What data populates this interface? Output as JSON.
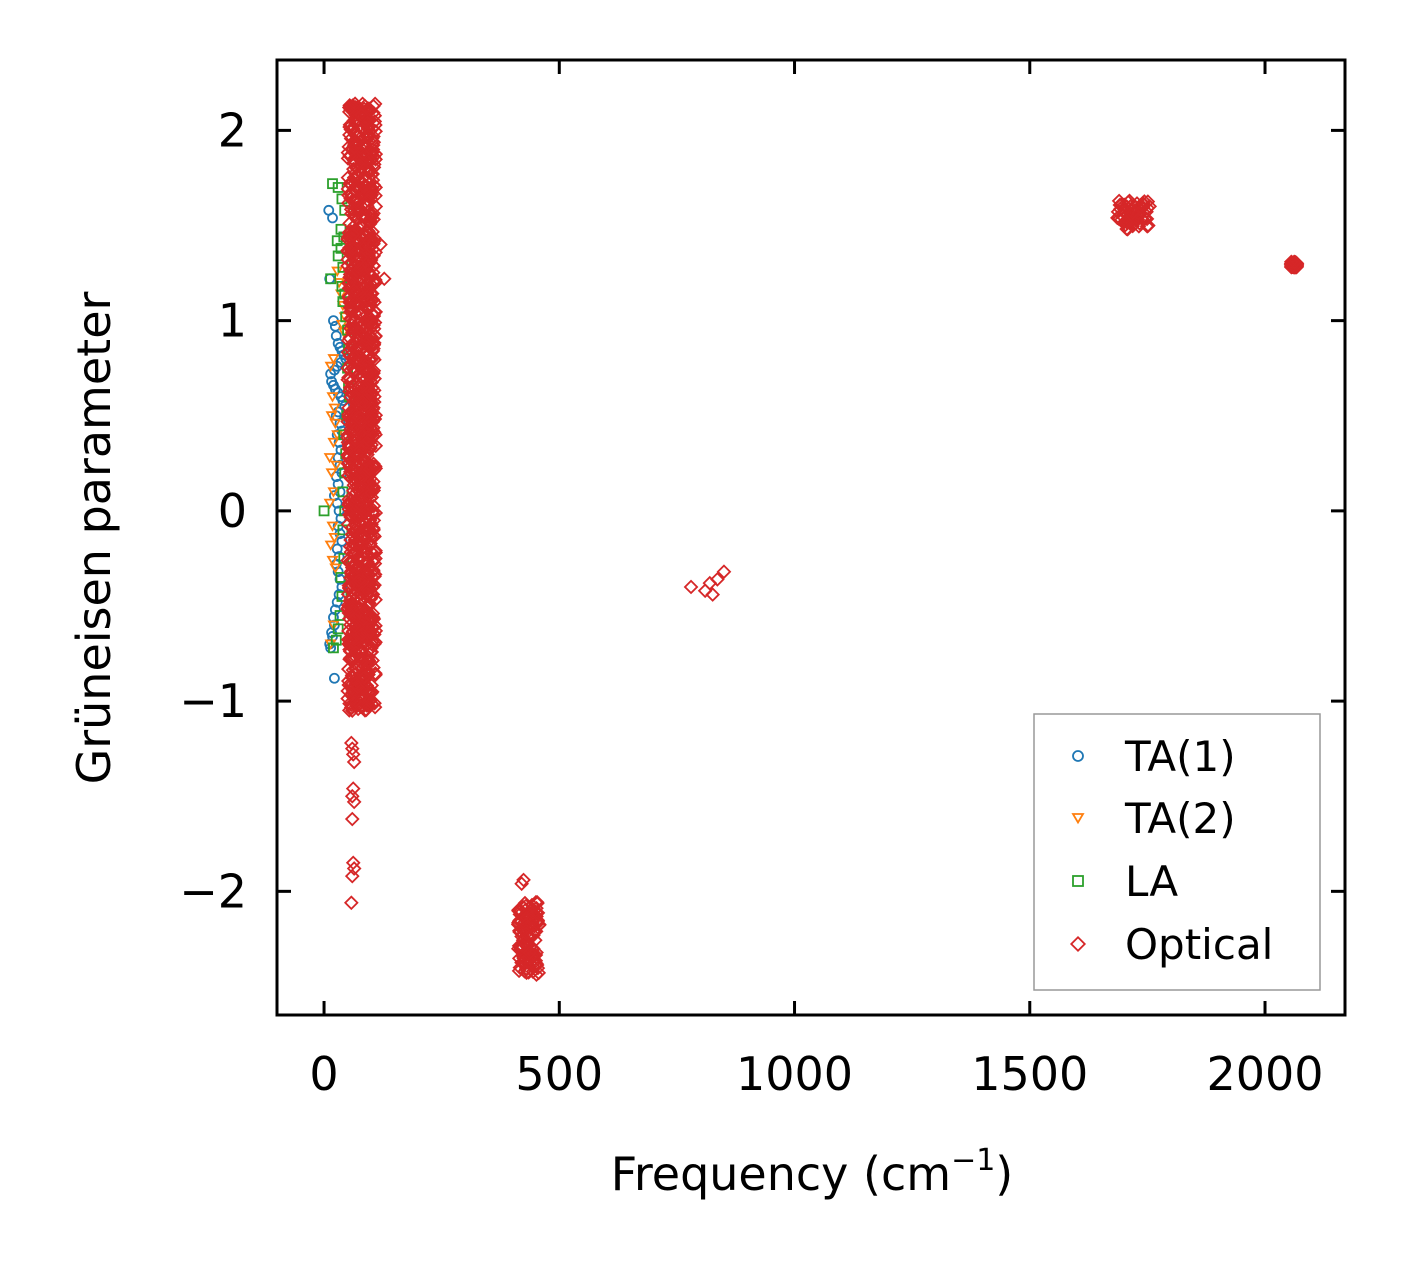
{
  "chart_data": {
    "type": "scatter",
    "xlabel_main": "Frequency (cm",
    "xlabel_sup": "−1",
    "xlabel_close": ")",
    "ylabel": "Grüneisen parameter",
    "xlim": [
      -100,
      2170
    ],
    "ylim": [
      -2.65,
      2.37
    ],
    "xticks": [
      0,
      500,
      1000,
      1500,
      2000
    ],
    "xtick_labels": [
      "0",
      "500",
      "1000",
      "1500",
      "2000"
    ],
    "yticks": [
      -2,
      -1,
      0,
      1,
      2
    ],
    "ytick_labels": [
      "−2",
      "−1",
      "0",
      "1",
      "2"
    ],
    "legend_position": "lower-right",
    "series": [
      {
        "name": "TA(1)",
        "marker": "circle",
        "color": "#1f77b4",
        "points": [
          [
            10,
            1.58
          ],
          [
            18,
            1.54
          ],
          [
            12,
            1.22
          ],
          [
            20,
            1.0
          ],
          [
            24,
            0.97
          ],
          [
            26,
            0.92
          ],
          [
            30,
            0.88
          ],
          [
            34,
            0.86
          ],
          [
            38,
            0.84
          ],
          [
            42,
            0.82
          ],
          [
            46,
            0.8
          ],
          [
            36,
            0.78
          ],
          [
            28,
            0.76
          ],
          [
            22,
            0.74
          ],
          [
            14,
            0.72
          ],
          [
            16,
            0.68
          ],
          [
            20,
            0.66
          ],
          [
            24,
            0.64
          ],
          [
            30,
            0.62
          ],
          [
            36,
            0.6
          ],
          [
            40,
            0.58
          ],
          [
            44,
            0.55
          ],
          [
            30,
            0.52
          ],
          [
            26,
            0.5
          ],
          [
            34,
            0.46
          ],
          [
            38,
            0.42
          ],
          [
            28,
            0.4
          ],
          [
            32,
            0.36
          ],
          [
            36,
            0.32
          ],
          [
            30,
            0.28
          ],
          [
            34,
            0.24
          ],
          [
            38,
            0.2
          ],
          [
            26,
            0.18
          ],
          [
            30,
            0.14
          ],
          [
            34,
            0.1
          ],
          [
            22,
            0.08
          ],
          [
            28,
            0.04
          ],
          [
            32,
            0.0
          ],
          [
            36,
            -0.04
          ],
          [
            30,
            -0.08
          ],
          [
            34,
            -0.12
          ],
          [
            38,
            -0.16
          ],
          [
            28,
            -0.2
          ],
          [
            32,
            -0.24
          ],
          [
            26,
            -0.28
          ],
          [
            30,
            -0.32
          ],
          [
            34,
            -0.36
          ],
          [
            38,
            -0.4
          ],
          [
            32,
            -0.44
          ],
          [
            28,
            -0.48
          ],
          [
            24,
            -0.52
          ],
          [
            20,
            -0.56
          ],
          [
            22,
            -0.6
          ],
          [
            16,
            -0.64
          ],
          [
            18,
            -0.66
          ],
          [
            12,
            -0.7
          ],
          [
            14,
            -0.72
          ],
          [
            22,
            -0.88
          ]
        ]
      },
      {
        "name": "TA(2)",
        "marker": "triangle-down",
        "color": "#ff7f0e",
        "points": [
          [
            28,
            1.26
          ],
          [
            32,
            1.2
          ],
          [
            36,
            1.14
          ],
          [
            40,
            1.08
          ],
          [
            44,
            1.02
          ],
          [
            38,
            0.98
          ],
          [
            42,
            0.94
          ],
          [
            20,
            0.8
          ],
          [
            14,
            0.76
          ],
          [
            18,
            0.6
          ],
          [
            22,
            0.54
          ],
          [
            16,
            0.5
          ],
          [
            24,
            0.46
          ],
          [
            28,
            0.4
          ],
          [
            20,
            0.36
          ],
          [
            12,
            0.28
          ],
          [
            26,
            0.24
          ],
          [
            16,
            0.2
          ],
          [
            20,
            0.1
          ],
          [
            12,
            0.04
          ],
          [
            18,
            -0.08
          ],
          [
            22,
            -0.14
          ],
          [
            14,
            -0.18
          ],
          [
            18,
            -0.26
          ],
          [
            24,
            -0.3
          ],
          [
            20,
            -0.6
          ],
          [
            14,
            -0.7
          ]
        ]
      },
      {
        "name": "LA",
        "marker": "square",
        "color": "#2ca02c",
        "points": [
          [
            18,
            1.72
          ],
          [
            30,
            1.7
          ],
          [
            38,
            1.64
          ],
          [
            44,
            1.58
          ],
          [
            36,
            1.48
          ],
          [
            42,
            1.44
          ],
          [
            28,
            1.42
          ],
          [
            36,
            1.38
          ],
          [
            30,
            1.34
          ],
          [
            40,
            1.28
          ],
          [
            14,
            1.22
          ],
          [
            38,
            1.18
          ],
          [
            44,
            1.14
          ],
          [
            40,
            1.1
          ],
          [
            46,
            1.02
          ],
          [
            50,
            0.95
          ],
          [
            52,
            0.85
          ],
          [
            50,
            0.75
          ],
          [
            52,
            0.65
          ],
          [
            54,
            0.6
          ],
          [
            48,
            0.5
          ],
          [
            42,
            0.4
          ],
          [
            46,
            0.3
          ],
          [
            44,
            0.2
          ],
          [
            40,
            0.1
          ],
          [
            44,
            0.0
          ],
          [
            40,
            -0.1
          ],
          [
            42,
            -0.25
          ],
          [
            36,
            -0.35
          ],
          [
            38,
            -0.45
          ],
          [
            34,
            -0.55
          ],
          [
            30,
            -0.62
          ],
          [
            26,
            -0.68
          ],
          [
            20,
            -0.72
          ],
          [
            0,
            0.0
          ]
        ]
      },
      {
        "name": "Optical",
        "marker": "diamond",
        "color": "#d62728",
        "clusters": [
          {
            "x_range": [
              50,
              110
            ],
            "y_range": [
              -1.05,
              2.14
            ],
            "tail": [
              [
                66,
                2.14
              ],
              [
                80,
                2.08
              ],
              [
                92,
                2.04
              ],
              [
                110,
                1.6
              ],
              [
                120,
                1.4
              ],
              [
                128,
                1.22
              ],
              [
                60,
                -1.05
              ],
              [
                66,
                -1.0
              ]
            ]
          },
          {
            "x_range": [
              412,
              458
            ],
            "y_range": [
              -2.44,
              -2.05
            ],
            "tail": [
              [
                420,
                -1.96
              ],
              [
                424,
                -1.94
              ]
            ]
          },
          {
            "x_range": [
              1685,
              1755
            ],
            "y_range": [
              1.48,
              1.63
            ]
          },
          {
            "x_range": [
              2055,
              2068
            ],
            "y_range": [
              1.28,
              1.31
            ]
          }
        ],
        "points": [
          [
            58,
            -1.22
          ],
          [
            60,
            -1.25
          ],
          [
            62,
            -1.28
          ],
          [
            64,
            -1.32
          ],
          [
            62,
            -1.46
          ],
          [
            60,
            -1.5
          ],
          [
            64,
            -1.53
          ],
          [
            60,
            -1.62
          ],
          [
            62,
            -1.85
          ],
          [
            64,
            -1.88
          ],
          [
            60,
            -1.92
          ],
          [
            58,
            -2.06
          ],
          [
            780,
            -0.4
          ],
          [
            810,
            -0.42
          ],
          [
            820,
            -0.38
          ],
          [
            826,
            -0.44
          ],
          [
            836,
            -0.36
          ],
          [
            850,
            -0.32
          ]
        ]
      }
    ]
  }
}
